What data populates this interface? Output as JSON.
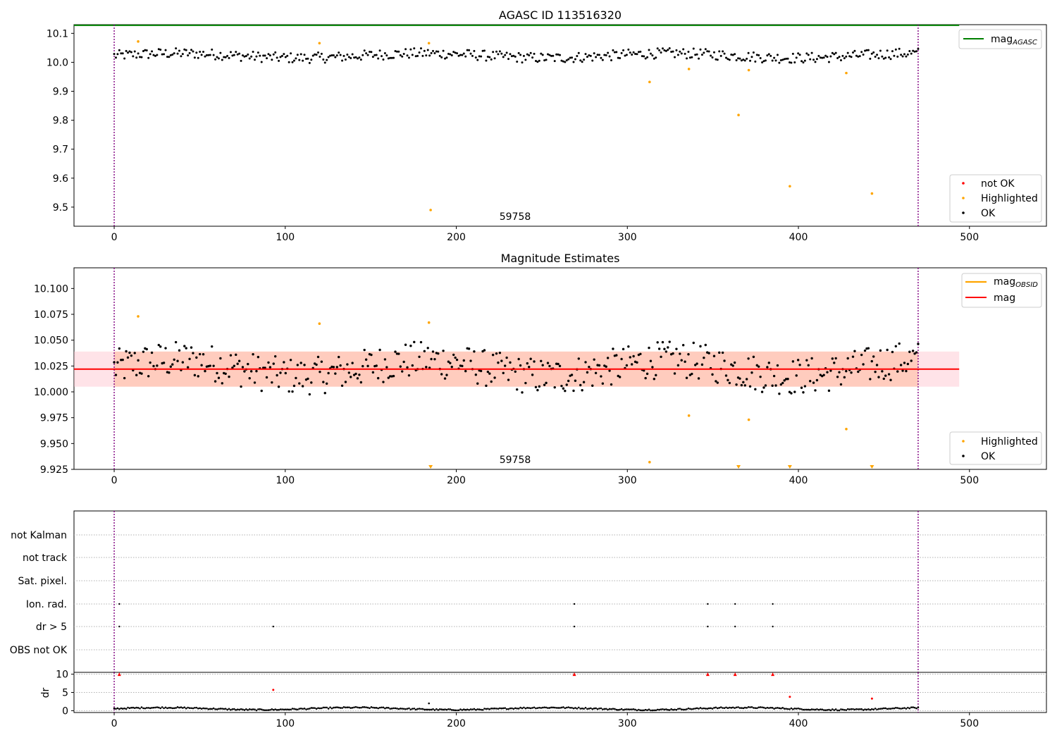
{
  "chart_data": [
    {
      "type": "scatter",
      "title": "AGASC ID 113516320",
      "xlim": [
        -23.5,
        545
      ],
      "ylim": [
        9.434,
        10.13
      ],
      "xticks": [
        0,
        100,
        200,
        300,
        400,
        500
      ],
      "yticks": [
        9.5,
        9.6,
        9.7,
        9.8,
        9.9,
        10.0,
        10.1
      ],
      "ytick_labels": [
        "9.5",
        "9.6",
        "9.7",
        "9.8",
        "9.9",
        "10.0",
        "10.1"
      ],
      "vlines": [
        0,
        470
      ],
      "annotation": {
        "text": "59758",
        "x": 235,
        "y": 9.455
      },
      "mag_agasc": 10.128,
      "ok_trend": {
        "n": 470,
        "x_start": 0,
        "x_end": 470,
        "mean": 10.023,
        "amp": 0.018
      },
      "highlighted": [
        [
          14,
          10.072
        ],
        [
          120,
          10.066
        ],
        [
          184,
          10.066
        ],
        [
          185,
          9.49
        ],
        [
          313,
          9.932
        ],
        [
          336,
          9.977
        ],
        [
          365,
          9.818
        ],
        [
          371,
          9.973
        ],
        [
          395,
          9.572
        ],
        [
          428,
          9.963
        ],
        [
          443,
          9.547
        ]
      ],
      "not_ok": [],
      "legend_top": [
        {
          "label": "mag",
          "sub": "AGASC",
          "color": "#008000"
        }
      ],
      "legend_bottom": [
        {
          "label": "not OK",
          "color": "#ff0000"
        },
        {
          "label": "Highlighted",
          "color": "#ffa500"
        },
        {
          "label": "OK",
          "color": "#000000"
        }
      ]
    },
    {
      "type": "scatter",
      "title": "Magnitude Estimates",
      "xlim": [
        -23.5,
        545
      ],
      "ylim": [
        9.925,
        10.12
      ],
      "xticks": [
        0,
        100,
        200,
        300,
        400,
        500
      ],
      "yticks": [
        9.925,
        9.95,
        9.975,
        10.0,
        10.025,
        10.05,
        10.075,
        10.1
      ],
      "ytick_labels": [
        "9.925",
        "9.950",
        "9.975",
        "10.000",
        "10.025",
        "10.050",
        "10.075",
        "10.100"
      ],
      "vlines": [
        0,
        470
      ],
      "annotation": {
        "text": "59758",
        "x": 235,
        "y": 9.931
      },
      "mag_mean": 10.022,
      "mag_band": [
        10.005,
        10.039
      ],
      "mag_line_x": [
        -23.5,
        494
      ],
      "obsid_band": [
        10.005,
        10.039
      ],
      "obsid_band_x": [
        0,
        470
      ],
      "ok_trend": {
        "n": 470,
        "x_start": 0,
        "x_end": 470,
        "mean": 10.023,
        "amp": 0.018
      },
      "highlighted": [
        [
          14,
          10.073
        ],
        [
          120,
          10.066
        ],
        [
          184,
          10.067
        ],
        [
          313,
          9.932
        ],
        [
          336,
          9.977
        ],
        [
          371,
          9.973
        ],
        [
          428,
          9.964
        ]
      ],
      "highlighted_below_range": [
        185,
        365,
        395,
        443
      ],
      "legend_top": [
        {
          "label": "mag",
          "sub": "OBSID",
          "color": "#ffa500"
        },
        {
          "label": "mag",
          "sub": "",
          "color": "#ff0000"
        }
      ],
      "legend_bottom": [
        {
          "label": "Highlighted",
          "color": "#ffa500"
        },
        {
          "label": "OK",
          "color": "#000000"
        }
      ]
    },
    {
      "type": "scatter",
      "title": "",
      "xlim": [
        -23.5,
        545
      ],
      "xticks": [
        0,
        100,
        200,
        300,
        400,
        500
      ],
      "vlines": [
        0,
        470
      ],
      "flag_rows": [
        "not Kalman",
        "not track",
        "Sat. pixel.",
        "Ion. rad.",
        "dr > 5",
        "OBS not OK"
      ],
      "flag_points": {
        "Ion. rad.": [
          3,
          269,
          347,
          363,
          385
        ],
        "dr > 5": [
          3,
          93,
          269,
          347,
          363,
          385
        ]
      }
    },
    {
      "type": "scatter",
      "title": "",
      "ylabel": "dr",
      "xlim": [
        -23.5,
        545
      ],
      "ylim": [
        -0.5,
        10.5
      ],
      "xticks": [
        0,
        100,
        200,
        300,
        400,
        500
      ],
      "yticks": [
        0,
        5,
        10
      ],
      "ytick_labels": [
        "0",
        "5",
        "10"
      ],
      "vlines": [
        0,
        470
      ],
      "dr_trend": {
        "n": 470,
        "base": 0.55,
        "amp": 0.3
      },
      "red_points": [
        [
          93,
          5.7
        ],
        [
          395,
          3.8
        ],
        [
          443,
          3.3
        ]
      ],
      "red_clipped_x": [
        3,
        269,
        347,
        363,
        385
      ]
    }
  ]
}
